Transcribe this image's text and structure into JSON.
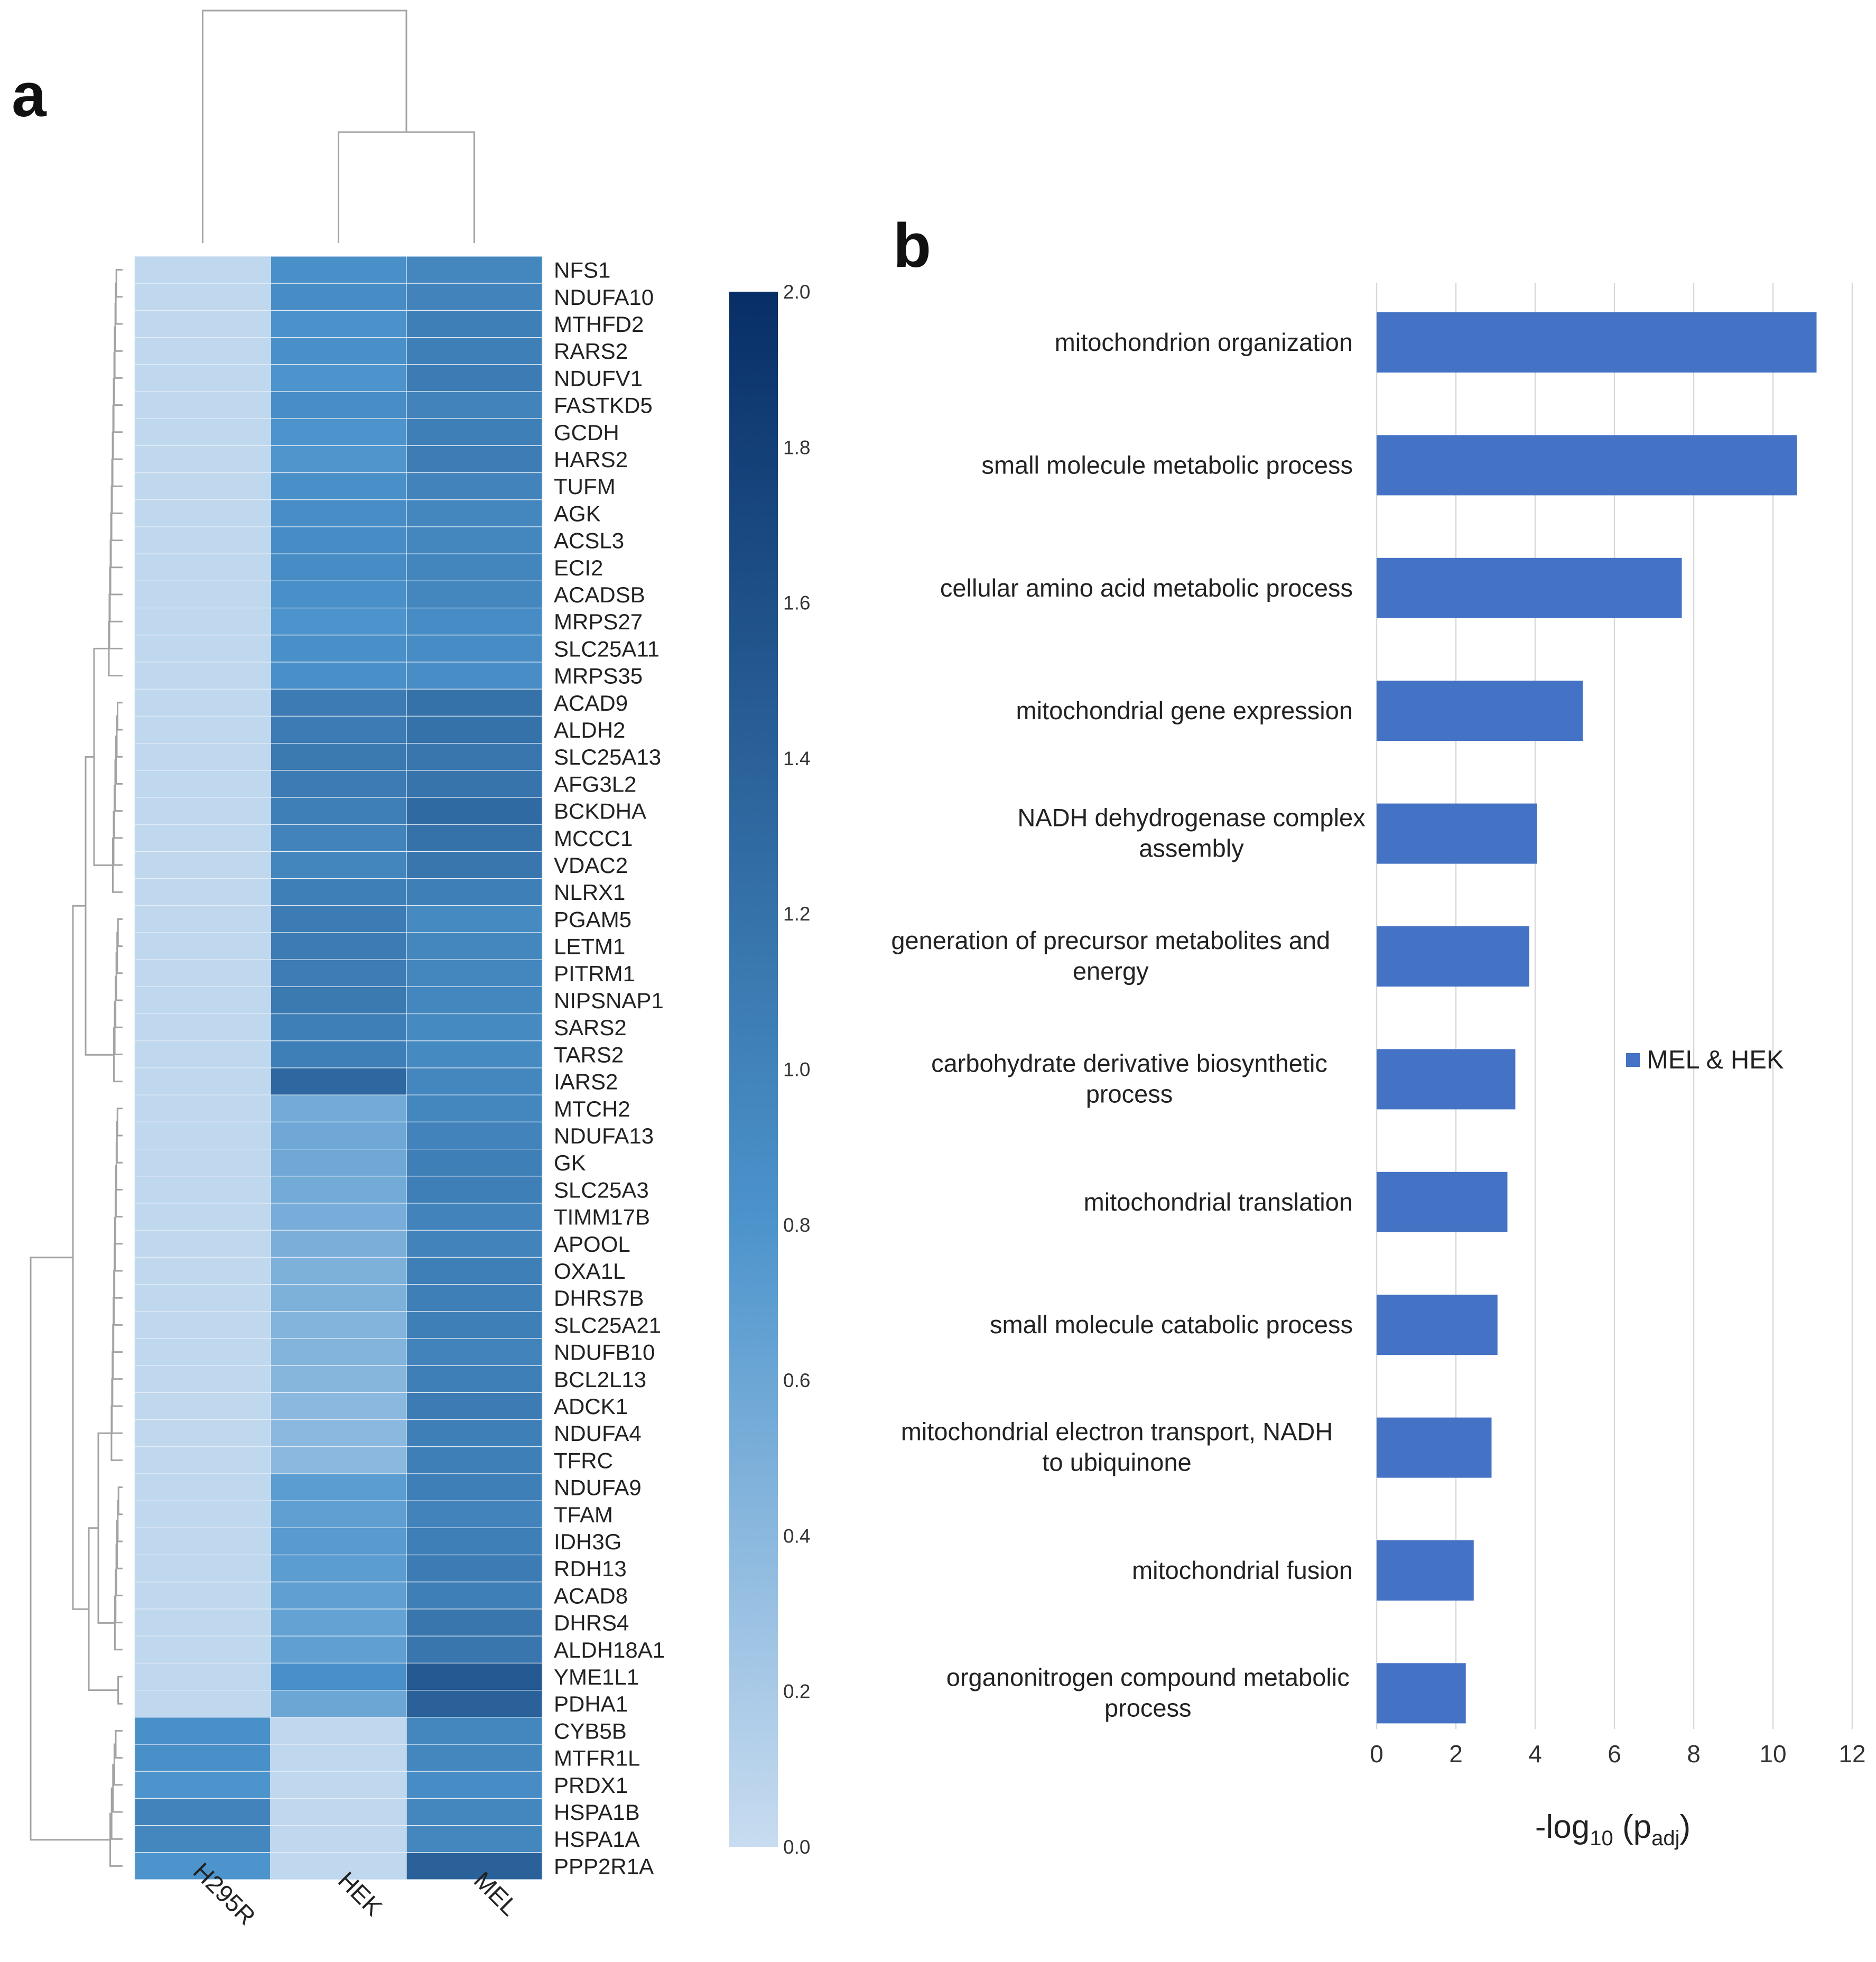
{
  "panel_a_label": "a",
  "panel_b_label": "b",
  "colors": {
    "bar": "#4472c4",
    "heat_low": "#c8dcf0",
    "heat_mid": "#4d94cc",
    "heat_high": "#082e66",
    "grid": "#d9d9d9",
    "dendrogram": "#a3a3a3"
  },
  "chart_data": [
    {
      "type": "heatmap",
      "title": "",
      "samples": [
        "H295R",
        "HEK",
        "MEL"
      ],
      "genes": [
        "NFS1",
        "NDUFA10",
        "MTHFD2",
        "RARS2",
        "NDUFV1",
        "FASTKD5",
        "GCDH",
        "HARS2",
        "TUFM",
        "AGK",
        "ACSL3",
        "ECI2",
        "ACADSB",
        "MRPS27",
        "SLC25A11",
        "MRPS35",
        "ACAD9",
        "ALDH2",
        "SLC25A13",
        "AFG3L2",
        "BCKDHA",
        "MCCC1",
        "VDAC2",
        "NLRX1",
        "PGAM5",
        "LETM1",
        "PITRM1",
        "NIPSNAP1",
        "SARS2",
        "TARS2",
        "IARS2",
        "MTCH2",
        "NDUFA13",
        "GK",
        "SLC25A3",
        "TIMM17B",
        "APOOL",
        "OXA1L",
        "DHRS7B",
        "SLC25A21",
        "NDUFB10",
        "BCL2L13",
        "ADCK1",
        "NDUFA4",
        "TFRC",
        "NDUFA9",
        "TFAM",
        "IDH3G",
        "RDH13",
        "ACAD8",
        "DHRS4",
        "ALDH18A1",
        "YME1L1",
        "PDHA1",
        "CYB5B",
        "MTFR1L",
        "PRDX1",
        "HSPA1B",
        "HSPA1A",
        "PPP2R1A"
      ],
      "values": [
        [
          0.05,
          0.85,
          0.95
        ],
        [
          0.05,
          0.9,
          1.0
        ],
        [
          0.05,
          0.82,
          1.05
        ],
        [
          0.05,
          0.85,
          1.05
        ],
        [
          0.05,
          0.8,
          1.1
        ],
        [
          0.05,
          0.88,
          1.0
        ],
        [
          0.05,
          0.8,
          1.05
        ],
        [
          0.05,
          0.78,
          1.08
        ],
        [
          0.05,
          0.85,
          1.0
        ],
        [
          0.05,
          0.88,
          0.95
        ],
        [
          0.05,
          0.9,
          0.95
        ],
        [
          0.05,
          0.9,
          0.98
        ],
        [
          0.05,
          0.85,
          0.95
        ],
        [
          0.05,
          0.8,
          0.9
        ],
        [
          0.05,
          0.85,
          0.9
        ],
        [
          0.05,
          0.85,
          0.88
        ],
        [
          0.05,
          1.1,
          1.2
        ],
        [
          0.05,
          1.1,
          1.2
        ],
        [
          0.05,
          1.12,
          1.15
        ],
        [
          0.05,
          1.1,
          1.18
        ],
        [
          0.05,
          1.05,
          1.3
        ],
        [
          0.05,
          1.0,
          1.2
        ],
        [
          0.05,
          0.98,
          1.15
        ],
        [
          0.05,
          1.05,
          1.05
        ],
        [
          0.05,
          1.1,
          0.92
        ],
        [
          0.05,
          1.1,
          0.95
        ],
        [
          0.05,
          1.08,
          0.95
        ],
        [
          0.05,
          1.12,
          0.95
        ],
        [
          0.05,
          1.05,
          0.92
        ],
        [
          0.05,
          1.05,
          0.92
        ],
        [
          0.05,
          1.32,
          0.95
        ],
        [
          0.05,
          0.55,
          0.95
        ],
        [
          0.05,
          0.58,
          1.0
        ],
        [
          0.05,
          0.58,
          1.05
        ],
        [
          0.05,
          0.55,
          1.05
        ],
        [
          0.05,
          0.52,
          1.0
        ],
        [
          0.05,
          0.5,
          1.0
        ],
        [
          0.05,
          0.48,
          1.05
        ],
        [
          0.05,
          0.48,
          1.05
        ],
        [
          0.05,
          0.45,
          1.05
        ],
        [
          0.05,
          0.45,
          1.0
        ],
        [
          0.05,
          0.42,
          1.05
        ],
        [
          0.05,
          0.4,
          1.1
        ],
        [
          0.05,
          0.4,
          1.05
        ],
        [
          0.05,
          0.4,
          1.05
        ],
        [
          0.05,
          0.7,
          1.05
        ],
        [
          0.05,
          0.68,
          1.0
        ],
        [
          0.05,
          0.72,
          1.05
        ],
        [
          0.05,
          0.7,
          1.1
        ],
        [
          0.05,
          0.68,
          1.05
        ],
        [
          0.05,
          0.65,
          1.15
        ],
        [
          0.05,
          0.68,
          1.15
        ],
        [
          0.05,
          0.85,
          1.5
        ],
        [
          0.05,
          0.6,
          1.4
        ],
        [
          0.85,
          0.05,
          0.95
        ],
        [
          0.85,
          0.05,
          0.95
        ],
        [
          0.8,
          0.05,
          0.9
        ],
        [
          1.0,
          0.05,
          0.95
        ],
        [
          0.95,
          0.05,
          0.95
        ],
        [
          0.8,
          0.05,
          1.4
        ]
      ],
      "colorbar": {
        "min": 0.0,
        "max": 2.0,
        "ticks": [
          "0.0",
          "0.2",
          "0.4",
          "0.6",
          "0.8",
          "1.0",
          "1.2",
          "1.4",
          "1.6",
          "1.8",
          "2.0"
        ]
      },
      "column_dendrogram": true,
      "row_dendrogram": true
    },
    {
      "type": "bar",
      "orientation": "horizontal",
      "title": "",
      "categories": [
        [
          "mitochondrion organization"
        ],
        [
          "small molecule metabolic process"
        ],
        [
          "cellular amino acid metabolic process"
        ],
        [
          "mitochondrial gene expression"
        ],
        [
          "NADH dehydrogenase complex",
          "assembly"
        ],
        [
          "generation of precursor metabolites and",
          "energy"
        ],
        [
          "carbohydrate derivative biosynthetic",
          "process"
        ],
        [
          "mitochondrial translation"
        ],
        [
          "small molecule catabolic process"
        ],
        [
          "mitochondrial electron transport, NADH",
          "to ubiquinone"
        ],
        [
          "mitochondrial fusion"
        ],
        [
          "organonitrogen compound metabolic",
          "process"
        ]
      ],
      "series": [
        {
          "name": "MEL & HEK",
          "values": [
            11.1,
            10.6,
            7.7,
            5.2,
            4.05,
            3.85,
            3.5,
            3.3,
            3.05,
            2.9,
            2.45,
            2.25
          ]
        }
      ],
      "xlabel_main": "-log",
      "xlabel_sub": "10",
      "xlabel_paren_open": " (p",
      "xlabel_paren_sub": "adj",
      "xlabel_paren_close": ")",
      "xlim": [
        0,
        12
      ],
      "xticks": [
        "0",
        "2",
        "4",
        "6",
        "8",
        "10",
        "12"
      ],
      "grid": true,
      "legend_position": "right"
    }
  ]
}
